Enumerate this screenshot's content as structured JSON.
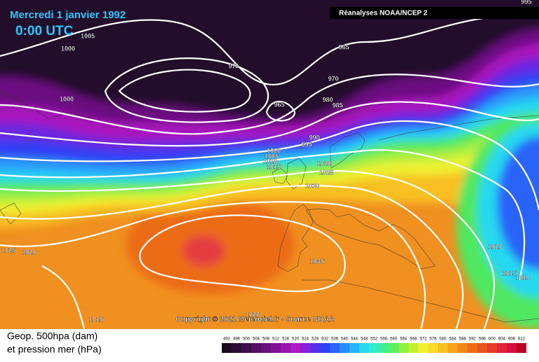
{
  "header": {
    "date": "Mercredi 1 janvier 1992",
    "time": "0:00 UTC",
    "source": "Réanalyses NOAA/NCEP 2"
  },
  "map": {
    "copyright": "Copyright © 2021 Meteociel.fr - Source NOAA",
    "isobar_labels": [
      1000,
      1005,
      975,
      965,
      970,
      1000,
      965,
      980,
      985,
      990,
      995,
      1000,
      1005,
      1010,
      1015,
      1020,
      1025,
      1030,
      1035,
      1025,
      1020,
      1020,
      1015,
      1010,
      1015,
      1020,
      995
    ]
  },
  "footer": {
    "line1": "Geop. 500hpa (dam)",
    "line2": "et pression mer (hPa)"
  },
  "scale": {
    "labels": [
      492,
      496,
      500,
      504,
      508,
      512,
      516,
      520,
      524,
      528,
      532,
      536,
      540,
      544,
      548,
      552,
      556,
      560,
      564,
      568,
      572,
      576,
      580,
      584,
      588,
      592,
      596,
      600,
      604,
      608,
      612
    ],
    "colors": [
      "#1a0a1e",
      "#2c0c34",
      "#3e0e4c",
      "#520f64",
      "#68107c",
      "#801294",
      "#9814ac",
      "#b016c4",
      "#8a20d8",
      "#5a2ce8",
      "#3040f4",
      "#2a64fa",
      "#2a8cfc",
      "#28b4fa",
      "#26d8f0",
      "#30ecc8",
      "#40f090",
      "#60ee60",
      "#90f040",
      "#c0f030",
      "#eef030",
      "#f8dc28",
      "#f8c020",
      "#f8a41c",
      "#f08818",
      "#ec6c18",
      "#e85420",
      "#e43c2c",
      "#e02438",
      "#d81040",
      "#c00020"
    ]
  }
}
